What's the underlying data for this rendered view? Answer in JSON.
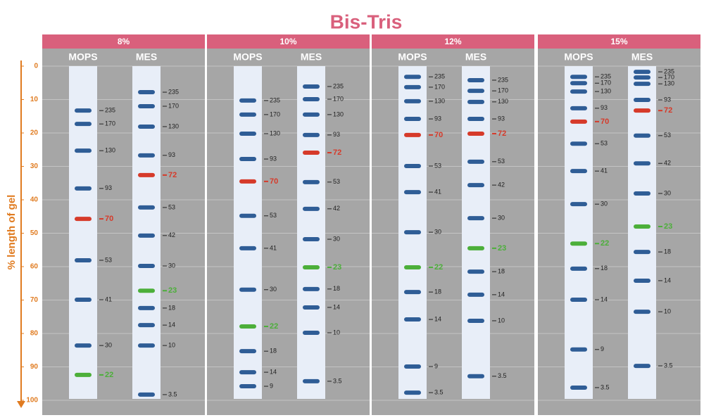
{
  "chart_data": {
    "type": "ladder",
    "title": "Bis-Tris",
    "y_label": "% length of gel",
    "ylim": [
      0,
      100
    ],
    "yticks": [
      0,
      10,
      20,
      30,
      40,
      50,
      60,
      70,
      80,
      90,
      100
    ],
    "grid": true,
    "panels": [
      {
        "title": "8%",
        "lanes": [
          {
            "name": "MOPS",
            "bands": [
              {
                "label": "235",
                "value": 13.3,
                "color": "#2f5d96"
              },
              {
                "label": "170",
                "value": 17.3,
                "color": "#2f5d96"
              },
              {
                "label": "130",
                "value": 25.3,
                "color": "#2f5d96"
              },
              {
                "label": "93",
                "value": 36.6,
                "color": "#2f5d96"
              },
              {
                "label": "70",
                "value": 45.7,
                "color": "#d63a2a"
              },
              {
                "label": "53",
                "value": 58.1,
                "color": "#2f5d96"
              },
              {
                "label": "41",
                "value": 69.9,
                "color": "#2f5d96"
              },
              {
                "label": "30",
                "value": 83.6,
                "color": "#2f5d96"
              },
              {
                "label": "22",
                "value": 92.4,
                "color": "#4caf3a"
              }
            ]
          },
          {
            "name": "MES",
            "bands": [
              {
                "label": "235",
                "value": 7.8,
                "color": "#2f5d96"
              },
              {
                "label": "170",
                "value": 12.0,
                "color": "#2f5d96"
              },
              {
                "label": "130",
                "value": 18.1,
                "color": "#2f5d96"
              },
              {
                "label": "93",
                "value": 26.7,
                "color": "#2f5d96"
              },
              {
                "label": "72",
                "value": 32.6,
                "color": "#d63a2a"
              },
              {
                "label": "53",
                "value": 42.3,
                "color": "#2f5d96"
              },
              {
                "label": "42",
                "value": 50.7,
                "color": "#2f5d96"
              },
              {
                "label": "30",
                "value": 59.8,
                "color": "#2f5d96"
              },
              {
                "label": "23",
                "value": 67.2,
                "color": "#4caf3a"
              },
              {
                "label": "18",
                "value": 72.4,
                "color": "#2f5d96"
              },
              {
                "label": "14",
                "value": 77.5,
                "color": "#2f5d96"
              },
              {
                "label": "10",
                "value": 83.6,
                "color": "#2f5d96"
              },
              {
                "label": "3.5",
                "value": 98.3,
                "color": "#2f5d96"
              }
            ]
          }
        ]
      },
      {
        "title": "10%",
        "lanes": [
          {
            "name": "MOPS",
            "bands": [
              {
                "label": "235",
                "value": 10.3,
                "color": "#2f5d96"
              },
              {
                "label": "170",
                "value": 14.5,
                "color": "#2f5d96"
              },
              {
                "label": "130",
                "value": 20.2,
                "color": "#2f5d96"
              },
              {
                "label": "93",
                "value": 27.8,
                "color": "#2f5d96"
              },
              {
                "label": "70",
                "value": 34.5,
                "color": "#d63a2a"
              },
              {
                "label": "53",
                "value": 44.8,
                "color": "#2f5d96"
              },
              {
                "label": "41",
                "value": 54.5,
                "color": "#2f5d96"
              },
              {
                "label": "30",
                "value": 66.9,
                "color": "#2f5d96"
              },
              {
                "label": "22",
                "value": 77.9,
                "color": "#4caf3a"
              },
              {
                "label": "18",
                "value": 85.3,
                "color": "#2f5d96"
              },
              {
                "label": "14",
                "value": 91.6,
                "color": "#2f5d96"
              },
              {
                "label": "9",
                "value": 95.8,
                "color": "#2f5d96"
              }
            ]
          },
          {
            "name": "MES",
            "bands": [
              {
                "label": "235",
                "value": 6.1,
                "color": "#2f5d96"
              },
              {
                "label": "170",
                "value": 9.9,
                "color": "#2f5d96"
              },
              {
                "label": "130",
                "value": 14.5,
                "color": "#2f5d96"
              },
              {
                "label": "93",
                "value": 20.6,
                "color": "#2f5d96"
              },
              {
                "label": "72",
                "value": 25.9,
                "color": "#d63a2a"
              },
              {
                "label": "53",
                "value": 34.7,
                "color": "#2f5d96"
              },
              {
                "label": "42",
                "value": 42.7,
                "color": "#2f5d96"
              },
              {
                "label": "30",
                "value": 51.8,
                "color": "#2f5d96"
              },
              {
                "label": "23",
                "value": 60.2,
                "color": "#4caf3a"
              },
              {
                "label": "18",
                "value": 66.7,
                "color": "#2f5d96"
              },
              {
                "label": "14",
                "value": 72.2,
                "color": "#2f5d96"
              },
              {
                "label": "10",
                "value": 79.8,
                "color": "#2f5d96"
              },
              {
                "label": "3.5",
                "value": 94.3,
                "color": "#2f5d96"
              }
            ]
          }
        ]
      },
      {
        "title": "12%",
        "lanes": [
          {
            "name": "MOPS",
            "bands": [
              {
                "label": "235",
                "value": 3.2,
                "color": "#2f5d96"
              },
              {
                "label": "170",
                "value": 6.3,
                "color": "#2f5d96"
              },
              {
                "label": "130",
                "value": 10.5,
                "color": "#2f5d96"
              },
              {
                "label": "93",
                "value": 15.8,
                "color": "#2f5d96"
              },
              {
                "label": "70",
                "value": 20.6,
                "color": "#d63a2a"
              },
              {
                "label": "53",
                "value": 29.9,
                "color": "#2f5d96"
              },
              {
                "label": "41",
                "value": 37.7,
                "color": "#2f5d96"
              },
              {
                "label": "30",
                "value": 49.7,
                "color": "#2f5d96"
              },
              {
                "label": "22",
                "value": 60.2,
                "color": "#4caf3a"
              },
              {
                "label": "18",
                "value": 67.6,
                "color": "#2f5d96"
              },
              {
                "label": "14",
                "value": 75.8,
                "color": "#2f5d96"
              },
              {
                "label": "9",
                "value": 89.9,
                "color": "#2f5d96"
              },
              {
                "label": "3.5",
                "value": 97.7,
                "color": "#2f5d96"
              }
            ]
          },
          {
            "name": "MES",
            "bands": [
              {
                "label": "235",
                "value": 4.2,
                "color": "#2f5d96"
              },
              {
                "label": "170",
                "value": 7.4,
                "color": "#2f5d96"
              },
              {
                "label": "130",
                "value": 10.7,
                "color": "#2f5d96"
              },
              {
                "label": "93",
                "value": 15.8,
                "color": "#2f5d96"
              },
              {
                "label": "72",
                "value": 20.2,
                "color": "#d63a2a"
              },
              {
                "label": "53",
                "value": 28.6,
                "color": "#2f5d96"
              },
              {
                "label": "42",
                "value": 35.6,
                "color": "#2f5d96"
              },
              {
                "label": "30",
                "value": 45.5,
                "color": "#2f5d96"
              },
              {
                "label": "23",
                "value": 54.5,
                "color": "#4caf3a"
              },
              {
                "label": "18",
                "value": 61.5,
                "color": "#2f5d96"
              },
              {
                "label": "14",
                "value": 68.4,
                "color": "#2f5d96"
              },
              {
                "label": "10",
                "value": 76.2,
                "color": "#2f5d96"
              },
              {
                "label": "3.5",
                "value": 92.8,
                "color": "#2f5d96"
              }
            ]
          }
        ]
      },
      {
        "title": "15%",
        "lanes": [
          {
            "name": "MOPS",
            "bands": [
              {
                "label": "235",
                "value": 3.2,
                "color": "#2f5d96"
              },
              {
                "label": "170",
                "value": 5.1,
                "color": "#2f5d96"
              },
              {
                "label": "130",
                "value": 7.6,
                "color": "#2f5d96"
              },
              {
                "label": "93",
                "value": 12.6,
                "color": "#2f5d96"
              },
              {
                "label": "70",
                "value": 16.6,
                "color": "#d63a2a"
              },
              {
                "label": "53",
                "value": 23.2,
                "color": "#2f5d96"
              },
              {
                "label": "41",
                "value": 31.4,
                "color": "#2f5d96"
              },
              {
                "label": "30",
                "value": 41.3,
                "color": "#2f5d96"
              },
              {
                "label": "22",
                "value": 53.1,
                "color": "#4caf3a"
              },
              {
                "label": "18",
                "value": 60.6,
                "color": "#2f5d96"
              },
              {
                "label": "14",
                "value": 69.9,
                "color": "#2f5d96"
              },
              {
                "label": "9",
                "value": 84.8,
                "color": "#2f5d96"
              },
              {
                "label": "3.5",
                "value": 96.2,
                "color": "#2f5d96"
              }
            ]
          },
          {
            "name": "MES",
            "bands": [
              {
                "label": "235",
                "value": 1.7,
                "color": "#2f5d96"
              },
              {
                "label": "170",
                "value": 3.4,
                "color": "#2f5d96"
              },
              {
                "label": "130",
                "value": 5.3,
                "color": "#2f5d96"
              },
              {
                "label": "93",
                "value": 10.1,
                "color": "#2f5d96"
              },
              {
                "label": "72",
                "value": 13.3,
                "color": "#d63a2a"
              },
              {
                "label": "53",
                "value": 20.8,
                "color": "#2f5d96"
              },
              {
                "label": "42",
                "value": 29.1,
                "color": "#2f5d96"
              },
              {
                "label": "30",
                "value": 38.1,
                "color": "#2f5d96"
              },
              {
                "label": "23",
                "value": 48.0,
                "color": "#4caf3a"
              },
              {
                "label": "18",
                "value": 55.6,
                "color": "#2f5d96"
              },
              {
                "label": "14",
                "value": 64.2,
                "color": "#2f5d96"
              },
              {
                "label": "10",
                "value": 73.5,
                "color": "#2f5d96"
              },
              {
                "label": "3.5",
                "value": 89.7,
                "color": "#2f5d96"
              }
            ]
          }
        ]
      }
    ]
  }
}
